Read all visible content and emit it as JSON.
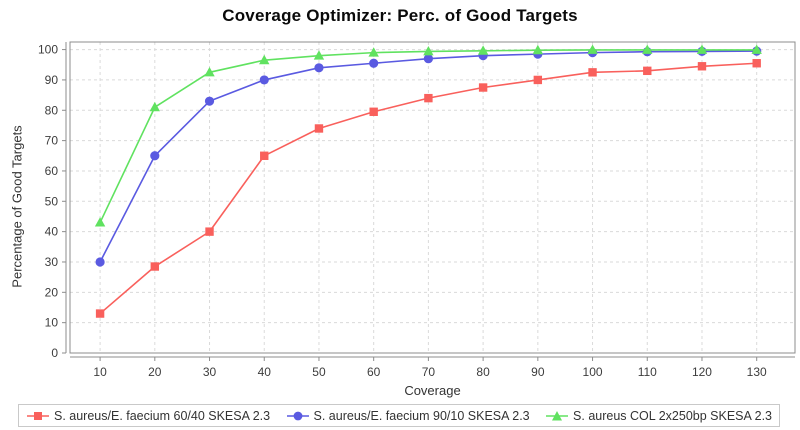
{
  "title": "Coverage Optimizer: Perc. of Good Targets",
  "chart_data": {
    "type": "line",
    "title": "Coverage Optimizer: Perc. of Good Targets",
    "xlabel": "Coverage",
    "ylabel": "Percentage of Good Targets",
    "x": [
      10,
      20,
      30,
      40,
      50,
      60,
      70,
      80,
      90,
      100,
      110,
      120,
      130
    ],
    "series": [
      {
        "name": "S. aureus/E. faecium 60/40 SKESA 2.3",
        "marker": "square",
        "color": "#f9605c",
        "values": [
          13,
          28.5,
          40,
          65,
          74,
          79.5,
          84,
          87.5,
          90,
          92.5,
          93,
          94.5,
          95.5
        ]
      },
      {
        "name": "S. aureus/E. faecium 90/10 SKESA 2.3",
        "marker": "circle",
        "color": "#5a5ae1",
        "values": [
          30,
          65,
          83,
          90,
          94,
          95.5,
          97,
          98,
          98.5,
          99,
          99.3,
          99.4,
          99.5
        ]
      },
      {
        "name": "S. aureus COL 2x250bp SKESA 2.3",
        "marker": "triangle",
        "color": "#60e260",
        "values": [
          43,
          81,
          92.5,
          96.5,
          98,
          99,
          99.4,
          99.6,
          99.8,
          99.9,
          99.9,
          99.9,
          99.9
        ]
      }
    ],
    "xticks": [
      10,
      20,
      30,
      40,
      50,
      60,
      70,
      80,
      90,
      100,
      110,
      120,
      130
    ],
    "yticks": [
      0,
      10,
      20,
      30,
      40,
      50,
      60,
      70,
      80,
      90,
      100
    ],
    "xlim": [
      4.5,
      137
    ],
    "ylim": [
      0,
      102.5
    ],
    "grid": {
      "show": true,
      "style": "dashed",
      "color": "#dadada"
    },
    "legend_position": "bottom",
    "axis_color": "#8c8c8c",
    "tick_label_color": "#3d3d3d"
  }
}
